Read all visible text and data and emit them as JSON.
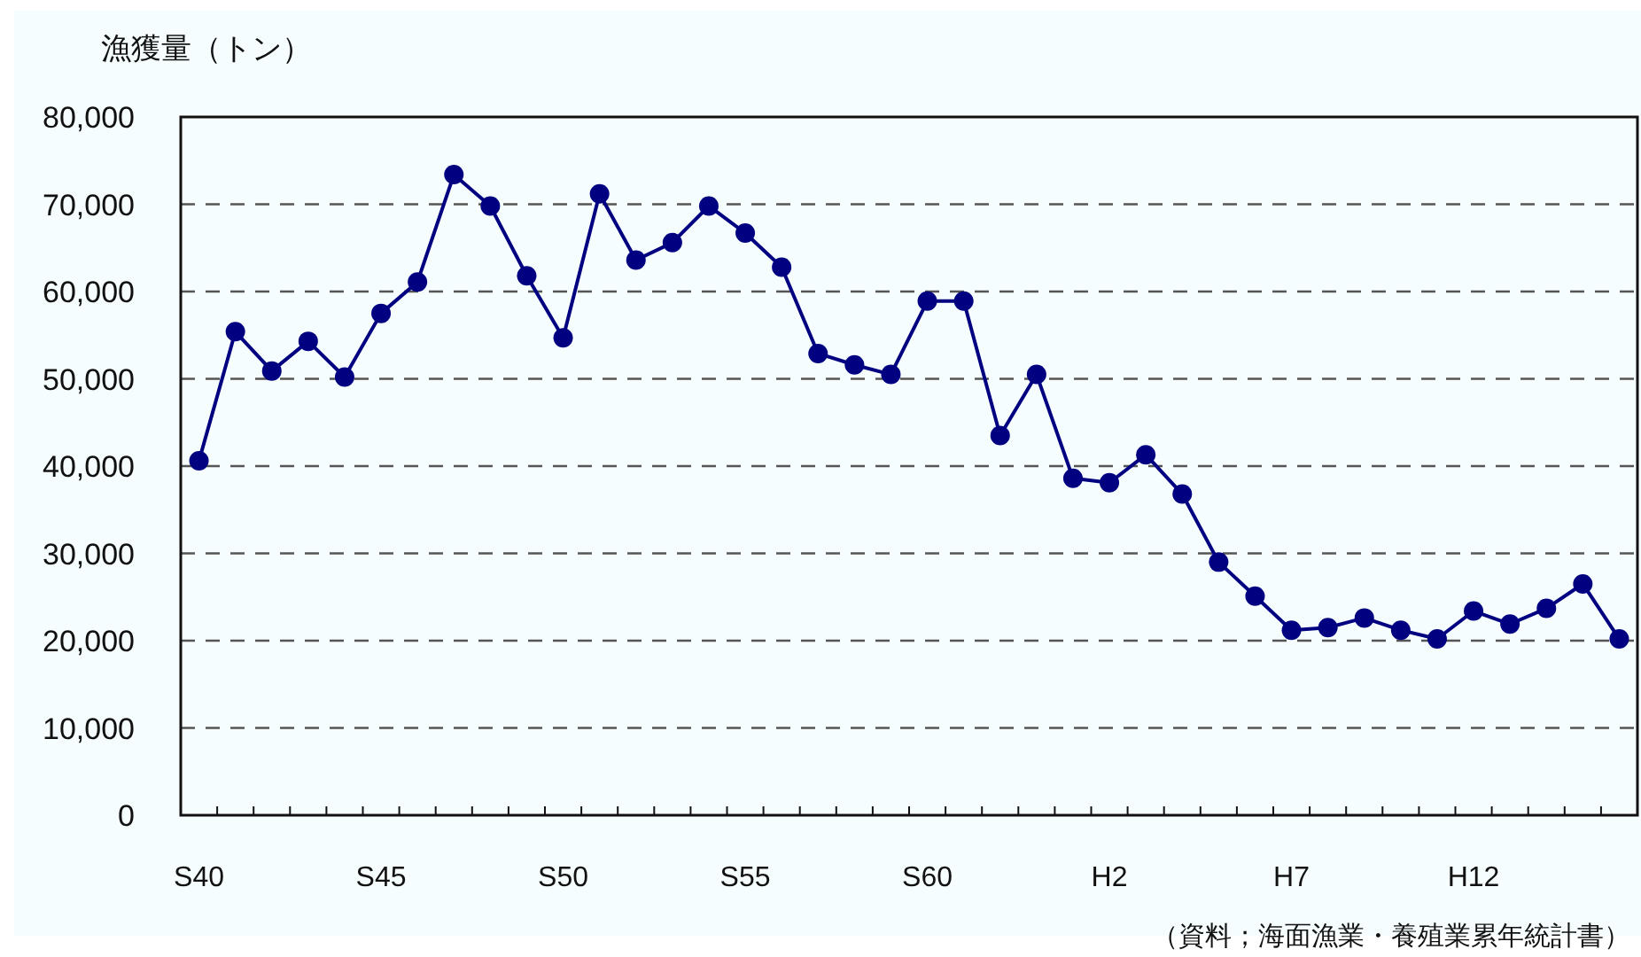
{
  "chart_data": {
    "type": "line",
    "ylabel": "漁獲量（トン）",
    "annotations": [
      "（資料；海面漁業・養殖業累年統計書）"
    ],
    "categories": [
      "S40",
      null,
      null,
      null,
      null,
      "S45",
      null,
      null,
      null,
      null,
      "S50",
      null,
      null,
      null,
      null,
      "S55",
      null,
      null,
      null,
      null,
      "S60",
      null,
      null,
      null,
      null,
      "H2",
      null,
      null,
      null,
      null,
      "H7",
      null,
      null,
      null,
      null,
      "H12",
      null,
      null,
      null,
      null
    ],
    "series": [
      {
        "color": "#000080",
        "values": [
          40600,
          55400,
          50900,
          54300,
          50200,
          57500,
          61100,
          73400,
          69800,
          61800,
          54700,
          71200,
          63600,
          65600,
          69800,
          66700,
          62800,
          52900,
          51600,
          50500,
          58900,
          58900,
          43500,
          50500,
          38600,
          38100,
          41300,
          36800,
          29000,
          25100,
          21200,
          21500,
          22600,
          21200,
          20200,
          23400,
          21900,
          23700,
          26500,
          20200
        ]
      }
    ],
    "ylim": [
      0,
      80000
    ],
    "yticks": [
      {
        "value": 0,
        "label": "0"
      },
      {
        "value": 10000,
        "label": "10,000"
      },
      {
        "value": 20000,
        "label": "20,000"
      },
      {
        "value": 30000,
        "label": "30,000"
      },
      {
        "value": 40000,
        "label": "40,000"
      },
      {
        "value": 50000,
        "label": "50,000"
      },
      {
        "value": 60000,
        "label": "60,000"
      },
      {
        "value": 70000,
        "label": "70,000"
      },
      {
        "value": 80000,
        "label": "80,000"
      }
    ],
    "grid": "y",
    "marker": "circle",
    "line_style": "solid"
  }
}
